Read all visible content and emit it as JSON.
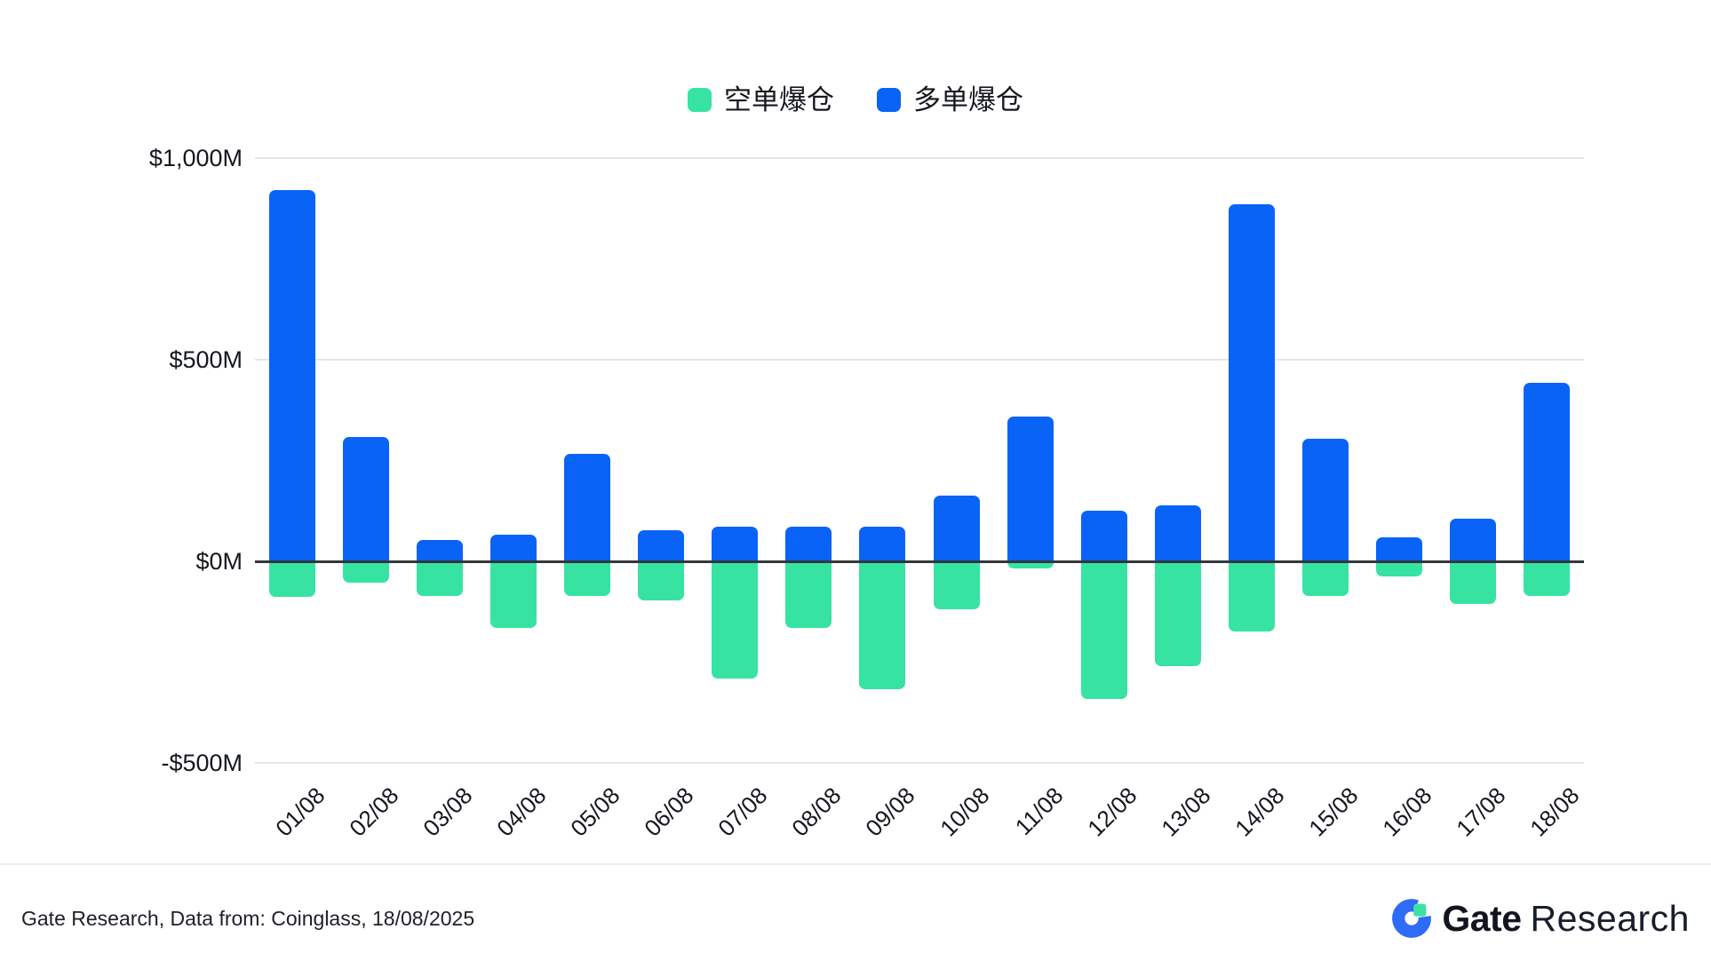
{
  "legend": {
    "items": [
      {
        "label": "空单爆仓",
        "color": "#37e3a3",
        "series": "short"
      },
      {
        "label": "多单爆仓",
        "color": "#0a63f7",
        "series": "long"
      }
    ]
  },
  "chart_data": {
    "type": "bar",
    "title": "",
    "unit": "$M",
    "categories": [
      "01/08",
      "02/08",
      "03/08",
      "04/08",
      "05/08",
      "06/08",
      "07/08",
      "08/08",
      "09/08",
      "10/08",
      "11/08",
      "12/08",
      "13/08",
      "14/08",
      "15/08",
      "16/08",
      "17/08",
      "18/08"
    ],
    "series": [
      {
        "name": "空单爆仓",
        "key": "short",
        "color": "#37e3a3",
        "values": [
          -89,
          -52,
          -85,
          -165,
          -86,
          -97,
          -290,
          -165,
          -317,
          -118,
          -18,
          -342,
          -260,
          -173,
          -87,
          -37,
          -105,
          -85
        ]
      },
      {
        "name": "多单爆仓",
        "key": "long",
        "color": "#0a63f7",
        "values": [
          920,
          309,
          52,
          65,
          267,
          76,
          87,
          87,
          87,
          163,
          358,
          126,
          139,
          885,
          303,
          59,
          106,
          442
        ]
      }
    ],
    "ylim": [
      -500,
      1000
    ],
    "yticks": [
      {
        "value": 1000,
        "label": "$1,000M"
      },
      {
        "value": 500,
        "label": "$500M"
      },
      {
        "value": 0,
        "label": "$0M"
      },
      {
        "value": -500,
        "label": "-$500M"
      }
    ],
    "grid": true,
    "legend_position": "top-center",
    "bars_anchored_at_zero": true
  },
  "footer": {
    "source_text": "Gate Research, Data from: Coinglass, 18/08/2025",
    "logo": {
      "bold": "Gate",
      "light": "Research"
    }
  },
  "colors": {
    "long": "#0a63f7",
    "short": "#37e3a3",
    "text": "#15181e",
    "grid": "#e5e5e5",
    "zero_line": "#33363a",
    "divider": "#ededed",
    "logo_blue": "#2e6bf6",
    "logo_green": "#3ce2a4",
    "logo_text": "#11151f"
  }
}
